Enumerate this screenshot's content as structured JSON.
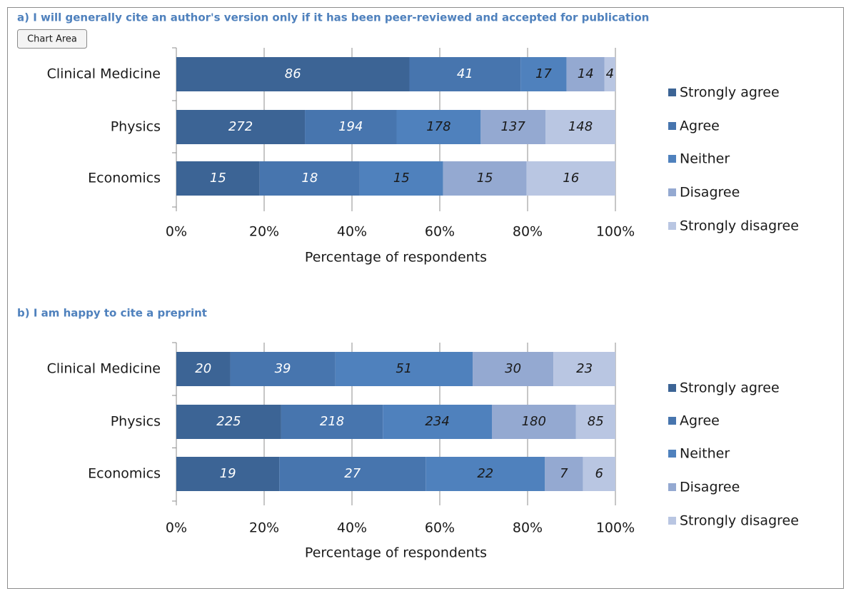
{
  "chart_area_tooltip": "Chart Area",
  "chart_data": [
    {
      "type": "bar",
      "orientation": "horizontal",
      "stacking": "percent",
      "title": "a) I will generally cite an author's version only if it has been peer-reviewed and accepted for publication",
      "categories": [
        "Clinical Medicine",
        "Physics",
        "Economics"
      ],
      "series": [
        {
          "name": "Strongly agree",
          "color": "#3c6495",
          "values": [
            86,
            272,
            15
          ]
        },
        {
          "name": "Agree",
          "color": "#4775ae",
          "values": [
            41,
            194,
            18
          ]
        },
        {
          "name": "Neither",
          "color": "#4f81bd",
          "values": [
            17,
            178,
            15
          ]
        },
        {
          "name": "Disagree",
          "color": "#94a9d1",
          "values": [
            14,
            137,
            15
          ]
        },
        {
          "name": "Strongly disagree",
          "color": "#b9c6e2",
          "values": [
            4,
            148,
            16
          ]
        }
      ],
      "xlabel": "Percentage of respondents",
      "xlim": [
        0,
        100
      ],
      "xticks": [
        {
          "value": 0,
          "label": "0%"
        },
        {
          "value": 20,
          "label": "20%"
        },
        {
          "value": 40,
          "label": "40%"
        },
        {
          "value": 60,
          "label": "60%"
        },
        {
          "value": 80,
          "label": "80%"
        },
        {
          "value": 100,
          "label": "100%"
        }
      ],
      "grid": true,
      "legend": "right"
    },
    {
      "type": "bar",
      "orientation": "horizontal",
      "stacking": "percent",
      "title": "b) I am happy to cite a preprint",
      "categories": [
        "Clinical Medicine",
        "Physics",
        "Economics"
      ],
      "series": [
        {
          "name": "Strongly agree",
          "color": "#3c6495",
          "values": [
            20,
            225,
            19
          ]
        },
        {
          "name": "Agree",
          "color": "#4775ae",
          "values": [
            39,
            218,
            27
          ]
        },
        {
          "name": "Neither",
          "color": "#4f81bd",
          "values": [
            51,
            234,
            22
          ]
        },
        {
          "name": "Disagree",
          "color": "#94a9d1",
          "values": [
            30,
            180,
            7
          ]
        },
        {
          "name": "Strongly disagree",
          "color": "#b9c6e2",
          "values": [
            23,
            85,
            6
          ]
        }
      ],
      "xlabel": "Percentage of respondents",
      "xlim": [
        0,
        100
      ],
      "xticks": [
        {
          "value": 0,
          "label": "0%"
        },
        {
          "value": 20,
          "label": "20%"
        },
        {
          "value": 40,
          "label": "40%"
        },
        {
          "value": 60,
          "label": "60%"
        },
        {
          "value": 80,
          "label": "80%"
        },
        {
          "value": 100,
          "label": "100%"
        }
      ],
      "grid": true,
      "legend": "right"
    }
  ]
}
